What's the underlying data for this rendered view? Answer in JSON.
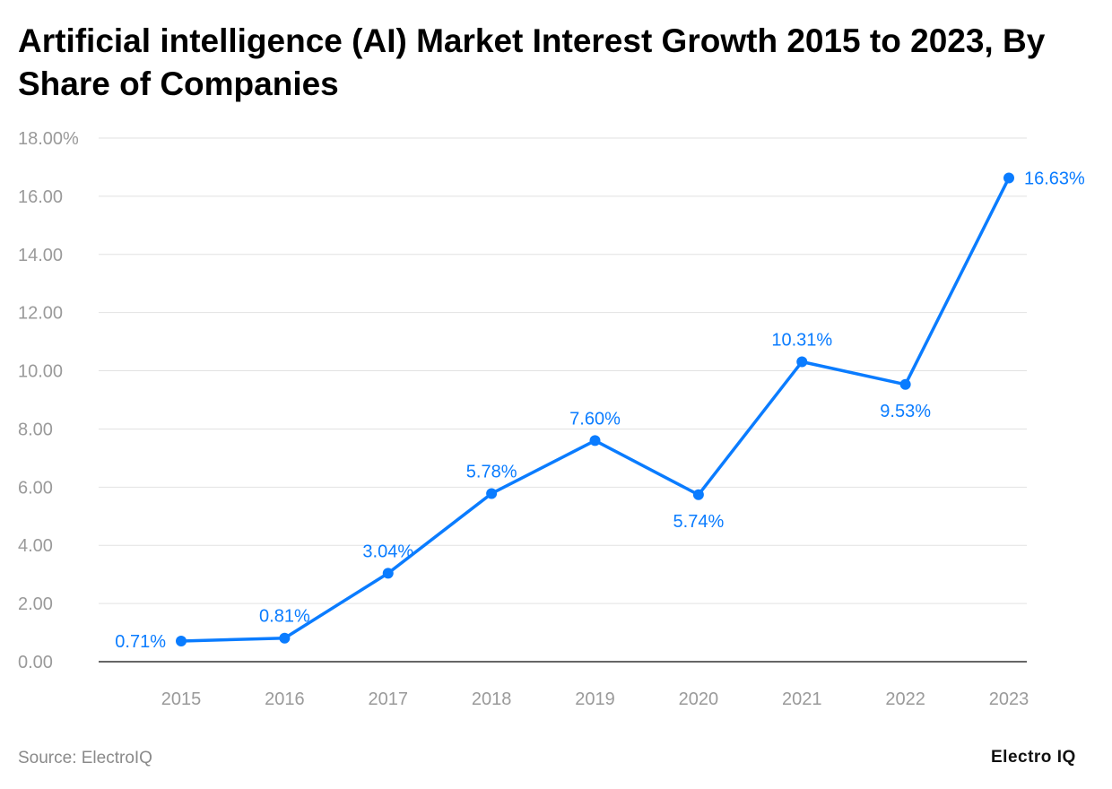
{
  "title": "Artificial intelligence (AI) Market Interest Growth 2015 to 2023, By Share of Companies",
  "source": "Source: ElectroIQ",
  "logo": "Electro IQ",
  "chart_data": {
    "type": "line",
    "title": "Artificial intelligence (AI) Market Interest Growth 2015 to 2023, By Share of Companies",
    "categories": [
      "2015",
      "2016",
      "2017",
      "2018",
      "2019",
      "2020",
      "2021",
      "2022",
      "2023"
    ],
    "values": [
      0.71,
      0.81,
      3.04,
      5.78,
      7.6,
      5.74,
      10.31,
      9.53,
      16.63
    ],
    "data_labels": [
      "0.71%",
      "0.81%",
      "3.04%",
      "5.78%",
      "7.60%",
      "5.74%",
      "10.31%",
      "9.53%",
      "16.63%"
    ],
    "y_ticks": [
      "0.00",
      "2.00",
      "4.00",
      "6.00",
      "8.00",
      "10.00",
      "12.00",
      "14.00",
      "16.00",
      "18.00%"
    ],
    "ylim": [
      0,
      18
    ],
    "grid": true,
    "xlabel": "",
    "ylabel": "",
    "line_color": "#0a7cff"
  }
}
